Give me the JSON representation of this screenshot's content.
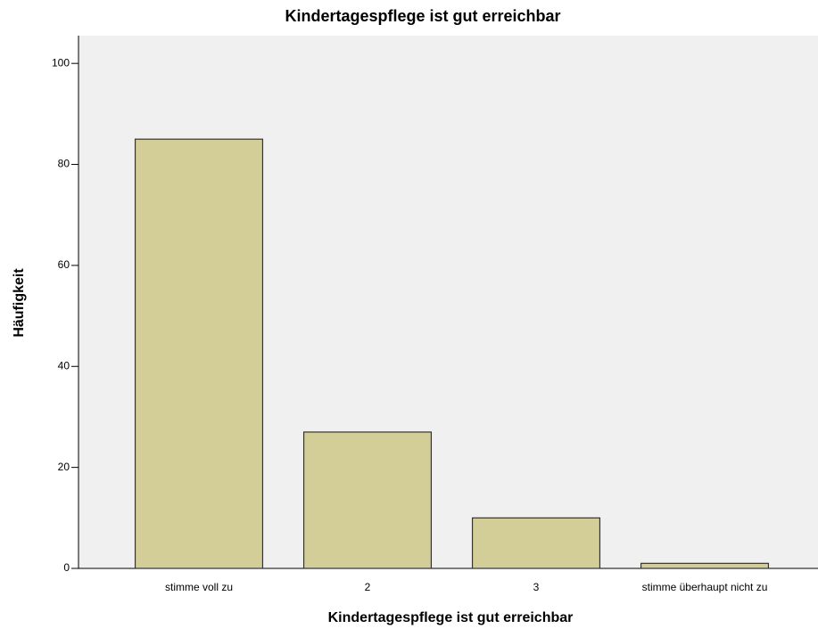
{
  "chart_data": {
    "type": "bar",
    "title": "Kindertagespflege ist gut erreichbar",
    "x_label": "Kindertagespflege ist gut erreichbar",
    "y_label": "Häufigkeit",
    "categories": [
      "stimme voll zu",
      "2",
      "3",
      "stimme überhaupt nicht zu"
    ],
    "values": [
      85,
      27,
      10,
      1
    ],
    "color": "#d3ce97",
    "ylim": [
      0,
      105.5
    ],
    "yticks": [
      0,
      20,
      40,
      60,
      80,
      100
    ],
    "grid": false
  }
}
